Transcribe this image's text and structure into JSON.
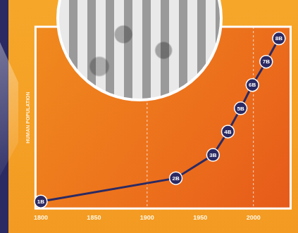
{
  "chart_data": {
    "type": "line",
    "y_label": "HUMAN POPULATION",
    "x": [
      1800,
      1927,
      1962,
      1976,
      1988,
      1999,
      2012,
      2024
    ],
    "values": [
      1,
      2,
      3,
      4,
      5,
      6,
      7,
      8
    ],
    "value_labels": [
      "1B",
      "2B",
      "3B",
      "4B",
      "5B",
      "6B",
      "7B",
      "8B"
    ],
    "data_labels": true,
    "xlim": [
      1795,
      2035
    ],
    "xticks": [
      1800,
      1850,
      1900,
      1950,
      2000
    ],
    "ylim": [
      0.7,
      8.5
    ],
    "tick_labels": "x",
    "grid": false,
    "color": "#2b2a63",
    "marker": "circle",
    "line_style": "solid",
    "vlines": [
      1900,
      2000
    ]
  }
}
